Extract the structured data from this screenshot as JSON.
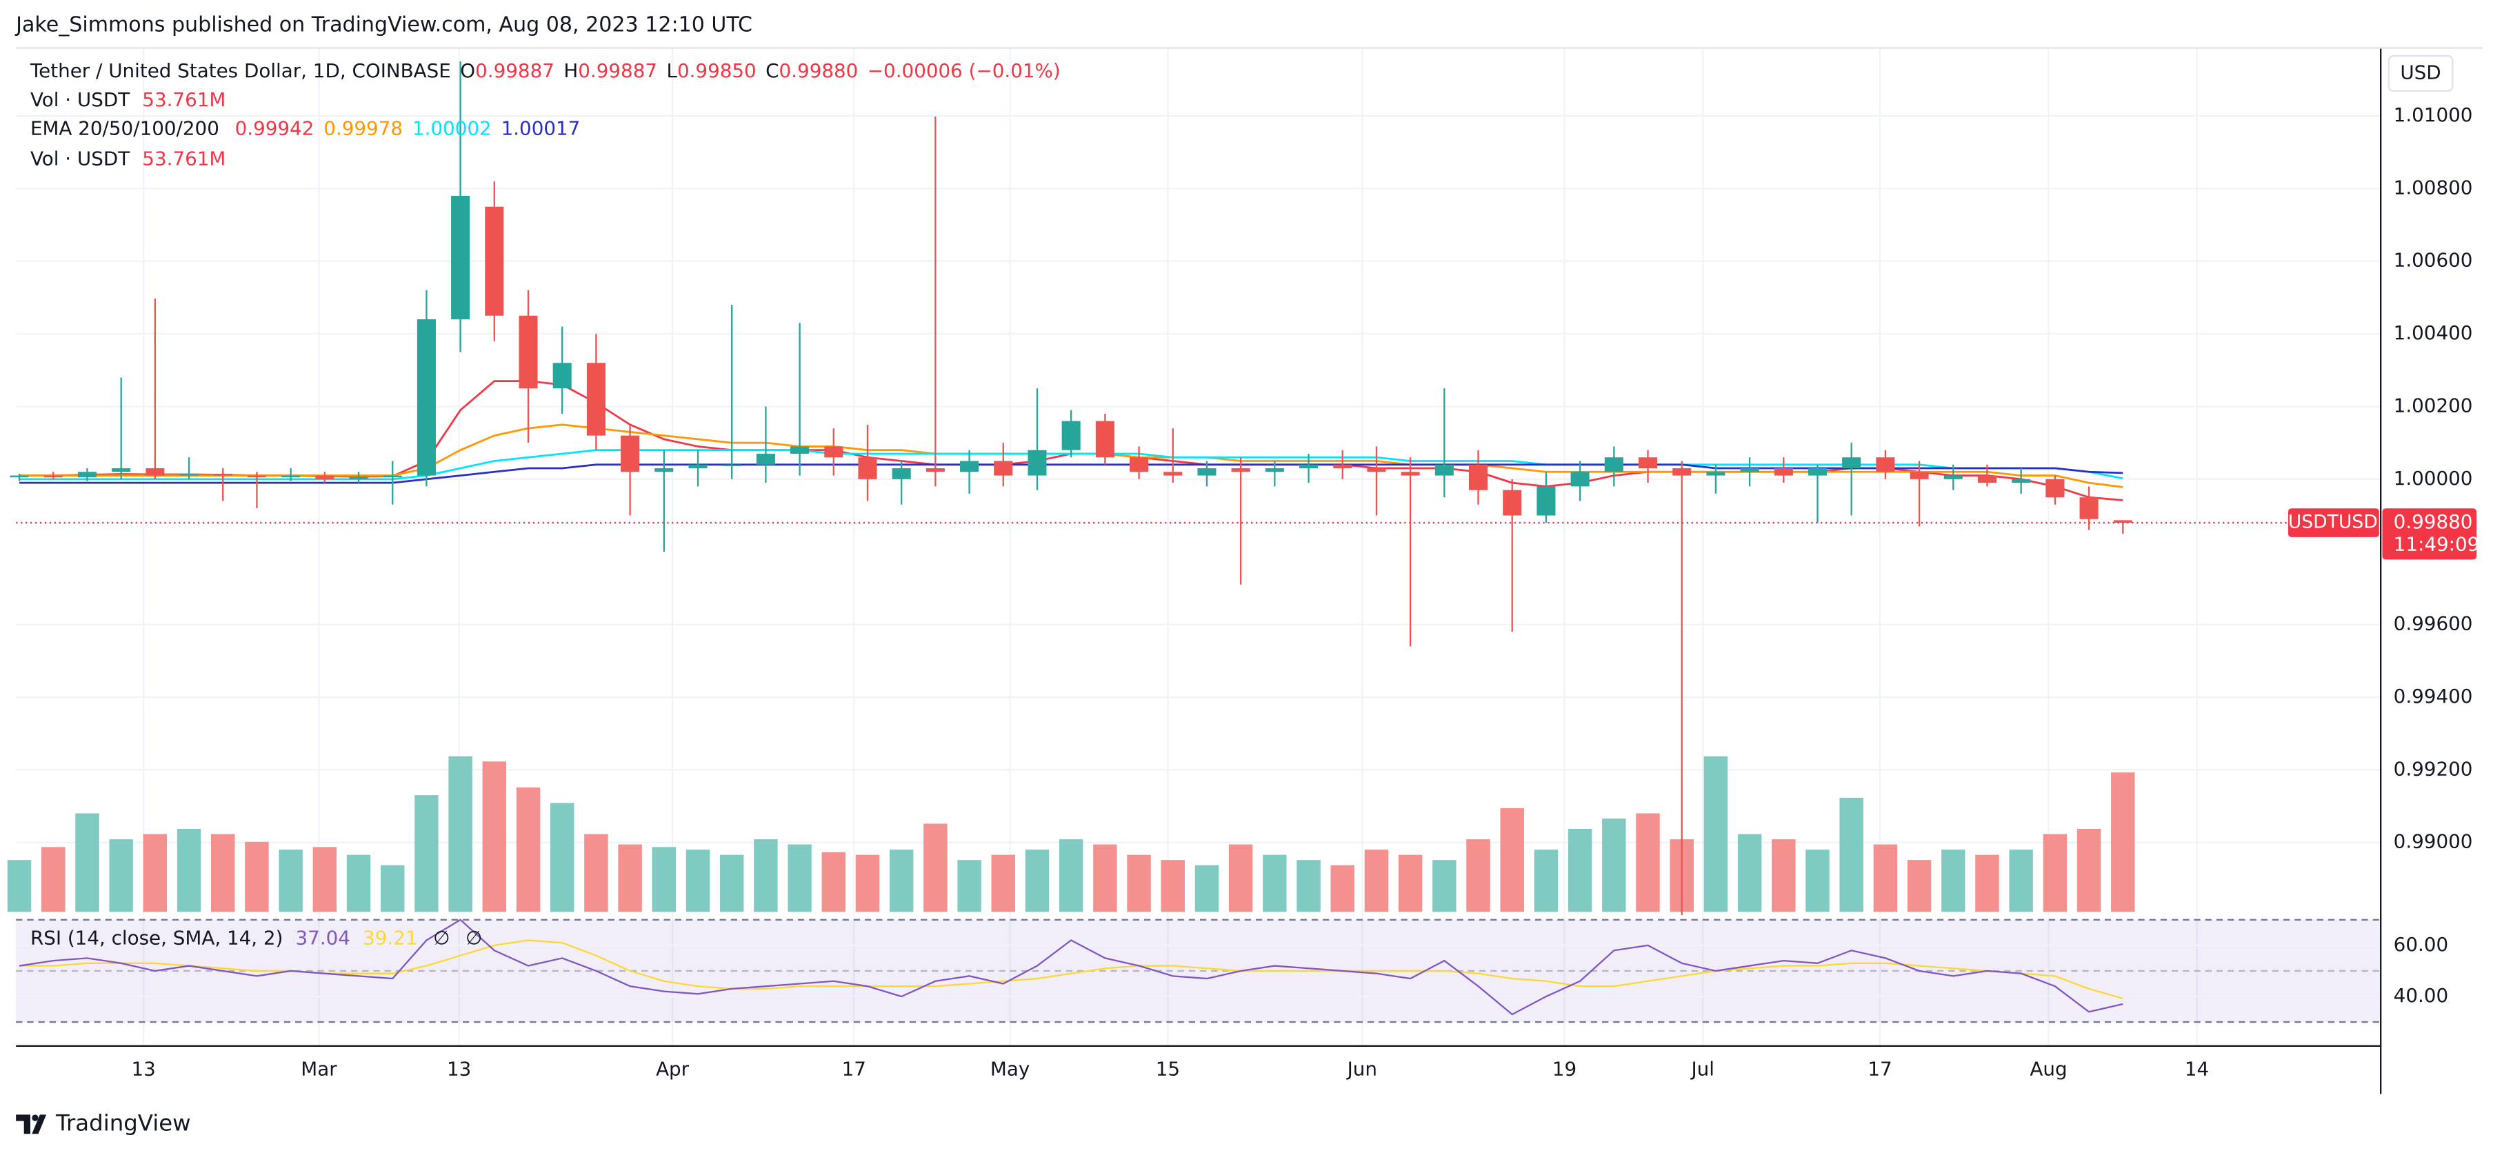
{
  "header": {
    "publisher": "Jake_Simmons published on TradingView.com, Aug 08, 2023 12:10 UTC",
    "currency_button": "USD"
  },
  "footer": {
    "brand": "TradingView"
  },
  "chart_data": {
    "type": "candlestick",
    "legend": {
      "symbol": "Tether / United States Dollar, 1D, COINBASE",
      "ohlc": [
        [
          "O",
          "0.99887"
        ],
        [
          "H",
          "0.99887"
        ],
        [
          "L",
          "0.99850"
        ],
        [
          "C",
          "0.99880"
        ]
      ],
      "change": "−0.00006 (−0.01%)",
      "volume_label": "Vol · USDT",
      "volume_value": "53.761M",
      "ema_label": "EMA 20/50/100/200",
      "rsi_label": "RSI (14, close, SMA, 14, 2)",
      "rsi_value": "37.04",
      "rsi_sma_value": "39.21",
      "rsi_empty": [
        "∅",
        "∅"
      ]
    },
    "xlim": [
      -0.1,
      69.6
    ],
    "xticks": [
      {
        "value": 3.66,
        "label": "13"
      },
      {
        "value": 8.83,
        "label": "Mar"
      },
      {
        "value": 12.96,
        "label": "13"
      },
      {
        "value": 19.25,
        "label": "Apr"
      },
      {
        "value": 24.6,
        "label": "17"
      },
      {
        "value": 29.2,
        "label": "May"
      },
      {
        "value": 33.85,
        "label": "15"
      },
      {
        "value": 39.58,
        "label": "Jun"
      },
      {
        "value": 45.54,
        "label": "19"
      },
      {
        "value": 49.62,
        "label": "Jul"
      },
      {
        "value": 54.84,
        "label": "17"
      },
      {
        "value": 59.81,
        "label": "Aug"
      },
      {
        "value": 64.18,
        "label": "14"
      }
    ],
    "ylim": [
      0.98809,
      1.01187
    ],
    "yticks": [
      {
        "value": 0.99,
        "label": "0.99000"
      },
      {
        "value": 0.992,
        "label": "0.99200"
      },
      {
        "value": 0.994,
        "label": "0.99400"
      },
      {
        "value": 0.996,
        "label": "0.99600"
      },
      {
        "value": 1.0,
        "label": "1.00000"
      },
      {
        "value": 1.002,
        "label": "1.00200"
      },
      {
        "value": 1.004,
        "label": "1.00400"
      },
      {
        "value": 1.006,
        "label": "1.00600"
      },
      {
        "value": 1.008,
        "label": "1.00800"
      },
      {
        "value": 1.01,
        "label": "1.01000"
      }
    ],
    "grid": true,
    "up_color": "#26a69a",
    "down_color": "#ef5350",
    "open": [
      1.00005,
      1.0001,
      1.00005,
      1.0002,
      1.0003,
      1.0001,
      1.00015,
      1.0001,
      1.00005,
      1.0001,
      1.0,
      1.00005,
      1.0001,
      1.0044,
      1.0075,
      1.0045,
      1.0025,
      1.0032,
      1.0012,
      1.0002,
      1.0003,
      1.0004,
      1.0004,
      1.0007,
      1.0009,
      1.0006,
      1.0,
      1.0003,
      1.0002,
      1.0005,
      1.0001,
      1.0008,
      1.0016,
      1.0006,
      1.0002,
      1.0001,
      1.0003,
      1.0002,
      1.0003,
      1.0004,
      1.0003,
      1.0002,
      1.0001,
      1.0004,
      0.9997,
      0.999,
      0.9998,
      1.0002,
      1.0006,
      1.0003,
      1.0001,
      1.0002,
      1.0003,
      1.0001,
      1.0003,
      1.0006,
      1.0002,
      1.0,
      1.0001,
      0.9999,
      1.0,
      0.9995,
      0.99887
    ],
    "high": [
      1.00015,
      1.0002,
      1.0003,
      1.0028,
      1.00497,
      1.0006,
      1.0003,
      1.0002,
      1.0003,
      1.0002,
      1.0002,
      1.0005,
      1.0052,
      1.0115,
      1.0082,
      1.0052,
      1.0042,
      1.004,
      1.0015,
      1.0008,
      1.0008,
      1.0048,
      1.002,
      1.0043,
      1.0014,
      1.0015,
      1.0005,
      1.00998,
      1.0008,
      1.001,
      1.0025,
      1.0019,
      1.0018,
      1.0009,
      1.0014,
      1.0005,
      1.0006,
      1.0005,
      1.0007,
      1.0008,
      1.0009,
      1.0006,
      1.0025,
      1.0008,
      1.0,
      1.0002,
      1.0005,
      1.0009,
      1.0008,
      1.0005,
      1.0004,
      1.0006,
      1.0006,
      1.0004,
      1.001,
      1.0008,
      1.0005,
      1.0004,
      1.0004,
      1.0003,
      1.0001,
      0.9998,
      0.99887
    ],
    "low": [
      0.99995,
      1.0,
      0.99995,
      1.0,
      1.0,
      1.0,
      0.9994,
      0.9992,
      0.99995,
      0.9999,
      0.9999,
      0.9993,
      0.9998,
      1.0035,
      1.0038,
      1.001,
      1.0018,
      1.0008,
      0.999,
      0.998,
      0.9998,
      1.0,
      0.9999,
      1.0001,
      1.0001,
      0.9994,
      0.9993,
      0.9998,
      0.9996,
      0.9998,
      0.9997,
      1.0006,
      1.0004,
      1.0,
      0.9999,
      0.9998,
      0.9971,
      0.9998,
      0.9999,
      1.0,
      0.999,
      0.9954,
      0.9995,
      0.9993,
      0.9958,
      0.9988,
      0.9994,
      0.9998,
      0.9999,
      0.988,
      0.9996,
      0.9998,
      0.9999,
      0.9988,
      0.999,
      1.0,
      0.9987,
      0.9997,
      0.9998,
      0.9996,
      0.9993,
      0.9986,
      0.9985
    ],
    "close": [
      1.0001,
      1.00005,
      1.0002,
      1.0003,
      1.0001,
      1.00015,
      1.0001,
      1.00005,
      1.0001,
      1.0,
      1.00005,
      1.0001,
      1.0044,
      1.0078,
      1.0045,
      1.0025,
      1.0032,
      1.0012,
      1.0002,
      1.0003,
      1.0004,
      1.0004,
      1.0007,
      1.0009,
      1.0006,
      1.0,
      1.0003,
      1.0002,
      1.0005,
      1.0001,
      1.0008,
      1.0016,
      1.0006,
      1.0002,
      1.0001,
      1.0003,
      1.0002,
      1.0003,
      1.0004,
      1.0003,
      1.0002,
      1.0001,
      1.0004,
      0.9997,
      0.999,
      0.9998,
      1.0002,
      1.0006,
      1.0003,
      1.0001,
      1.0002,
      1.0003,
      1.0001,
      1.0003,
      1.0006,
      1.0002,
      1.0,
      1.0001,
      0.9999,
      1.0,
      0.9995,
      0.9989,
      0.9988
    ],
    "series": [
      {
        "name": "0.99942",
        "color": "#f23645",
        "values": [
          1.0001,
          1.0001,
          1.00012,
          1.00014,
          1.00013,
          1.00013,
          1.00012,
          1.0001,
          1.0001,
          1.00008,
          1.00007,
          1.00008,
          1.0005,
          1.0019,
          1.0027,
          1.0027,
          1.0026,
          1.0021,
          1.0015,
          1.0011,
          1.0009,
          1.0008,
          1.0008,
          1.0008,
          1.0008,
          1.0006,
          1.0005,
          1.0004,
          1.0004,
          1.0004,
          1.0005,
          1.0007,
          1.0007,
          1.0006,
          1.0005,
          1.0004,
          1.0004,
          1.0004,
          1.0004,
          1.0004,
          1.0003,
          1.0003,
          1.0003,
          1.0002,
          0.9999,
          0.9998,
          0.9999,
          1.0001,
          1.0002,
          1.0002,
          1.0002,
          1.0002,
          1.0002,
          1.0002,
          1.0003,
          1.0003,
          1.0002,
          1.0001,
          1.0001,
          1.0,
          0.9998,
          0.9995,
          0.99942
        ]
      },
      {
        "name": "0.99978",
        "color": "#ff9800",
        "values": [
          1.0001,
          1.0001,
          1.0001,
          1.0001,
          1.0001,
          1.0001,
          1.0001,
          1.0001,
          1.0001,
          1.0001,
          1.0001,
          1.0001,
          1.0003,
          1.0008,
          1.0012,
          1.0014,
          1.0015,
          1.0014,
          1.0013,
          1.0012,
          1.0011,
          1.001,
          1.001,
          1.0009,
          1.0009,
          1.0008,
          1.0008,
          1.0007,
          1.0007,
          1.0007,
          1.0007,
          1.0007,
          1.0007,
          1.0006,
          1.0006,
          1.0006,
          1.0005,
          1.0005,
          1.0005,
          1.0005,
          1.0005,
          1.0004,
          1.0004,
          1.0004,
          1.0003,
          1.0002,
          1.0002,
          1.0002,
          1.0002,
          1.0002,
          1.0002,
          1.0002,
          1.0002,
          1.0002,
          1.0002,
          1.0002,
          1.0002,
          1.0002,
          1.0002,
          1.0001,
          1.0001,
          0.9999,
          0.99978
        ]
      },
      {
        "name": "1.00002",
        "color": "#00e5ff",
        "values": [
          1.0,
          1.0,
          1.0,
          1.0,
          1.0,
          1.0,
          1.0,
          1.0,
          1.0,
          1.0,
          1.0,
          1.0,
          1.0001,
          1.0003,
          1.0005,
          1.0006,
          1.0007,
          1.0008,
          1.0008,
          1.0008,
          1.0008,
          1.0008,
          1.0008,
          1.0008,
          1.0007,
          1.0007,
          1.0007,
          1.0007,
          1.0007,
          1.0007,
          1.0007,
          1.0007,
          1.0007,
          1.0007,
          1.0006,
          1.0006,
          1.0006,
          1.0006,
          1.0006,
          1.0006,
          1.0006,
          1.0005,
          1.0005,
          1.0005,
          1.0005,
          1.0004,
          1.0004,
          1.0004,
          1.0004,
          1.0004,
          1.0004,
          1.0004,
          1.0004,
          1.0004,
          1.0004,
          1.0004,
          1.0004,
          1.0003,
          1.0003,
          1.0003,
          1.0003,
          1.0002,
          1.00002
        ]
      },
      {
        "name": "1.00017",
        "color": "#2a2ec2",
        "values": [
          0.9999,
          0.9999,
          0.9999,
          0.9999,
          0.9999,
          0.9999,
          0.9999,
          0.9999,
          0.9999,
          0.9999,
          0.9999,
          0.9999,
          1.0,
          1.0001,
          1.0002,
          1.0003,
          1.0003,
          1.0004,
          1.0004,
          1.0004,
          1.0004,
          1.0004,
          1.0004,
          1.0004,
          1.0004,
          1.0004,
          1.0004,
          1.0004,
          1.0004,
          1.0004,
          1.0004,
          1.0004,
          1.0004,
          1.0004,
          1.0004,
          1.0004,
          1.0004,
          1.0004,
          1.0004,
          1.0004,
          1.0004,
          1.0004,
          1.0004,
          1.0004,
          1.0004,
          1.0004,
          1.0004,
          1.0004,
          1.0004,
          1.0004,
          1.0003,
          1.0003,
          1.0003,
          1.0003,
          1.0003,
          1.0003,
          1.0003,
          1.0003,
          1.0003,
          1.0003,
          1.0003,
          1.0002,
          1.00017
        ]
      }
    ],
    "last_price": {
      "symbol": "USDTUSD",
      "value": 0.9988,
      "label": "0.99880",
      "countdown": "11:49:09",
      "color": "#f23645"
    },
    "volume": [
      20,
      25,
      38,
      28,
      30,
      32,
      30,
      27,
      24,
      25,
      22,
      18,
      45,
      60,
      58,
      48,
      42,
      30,
      26,
      25,
      24,
      22,
      28,
      26,
      23,
      22,
      24,
      34,
      20,
      22,
      24,
      28,
      26,
      22,
      20,
      18,
      26,
      22,
      20,
      18,
      24,
      22,
      20,
      28,
      40,
      24,
      32,
      36,
      38,
      28,
      60,
      30,
      28,
      24,
      44,
      26,
      20,
      24,
      22,
      24,
      30,
      32,
      53.761
    ],
    "volume_ylim": [
      0,
      93
    ],
    "volume_up_color": "#7fcbc2",
    "volume_down_color": "#f4908d",
    "rsi": [
      52,
      54,
      55,
      53,
      50,
      52,
      50,
      48,
      50,
      49,
      48,
      47,
      62,
      70,
      58,
      52,
      55,
      50,
      44,
      42,
      41,
      43,
      44,
      45,
      46,
      44,
      40,
      46,
      48,
      45,
      52,
      62,
      55,
      52,
      48,
      47,
      50,
      52,
      51,
      50,
      49,
      47,
      54,
      44,
      33,
      40,
      46,
      58,
      60,
      53,
      50,
      52,
      54,
      53,
      58,
      55,
      50,
      48,
      50,
      49,
      44,
      34,
      37.04
    ],
    "rsi_sma": [
      52,
      52,
      53,
      53,
      53,
      52,
      51,
      50,
      50,
      49,
      49,
      49,
      52,
      56,
      60,
      62,
      61,
      56,
      50,
      46,
      44,
      43,
      43,
      44,
      44,
      44,
      44,
      44,
      45,
      46,
      47,
      49,
      51,
      52,
      52,
      51,
      50,
      50,
      50,
      50,
      50,
      50,
      50,
      49,
      47,
      46,
      44,
      44,
      46,
      48,
      50,
      51,
      52,
      52,
      53,
      53,
      52,
      51,
      50,
      49,
      48,
      43,
      39.21
    ],
    "rsi_color": "#7e57c2",
    "rsi_sma_color": "#fdd835",
    "rsi_ylim": [
      22.5,
      70.6
    ],
    "rsi_yticks": [
      {
        "value": 40,
        "label": "40.00"
      },
      {
        "value": 60,
        "label": "60.00"
      }
    ],
    "rsi_bands": [
      30,
      50,
      70
    ]
  }
}
